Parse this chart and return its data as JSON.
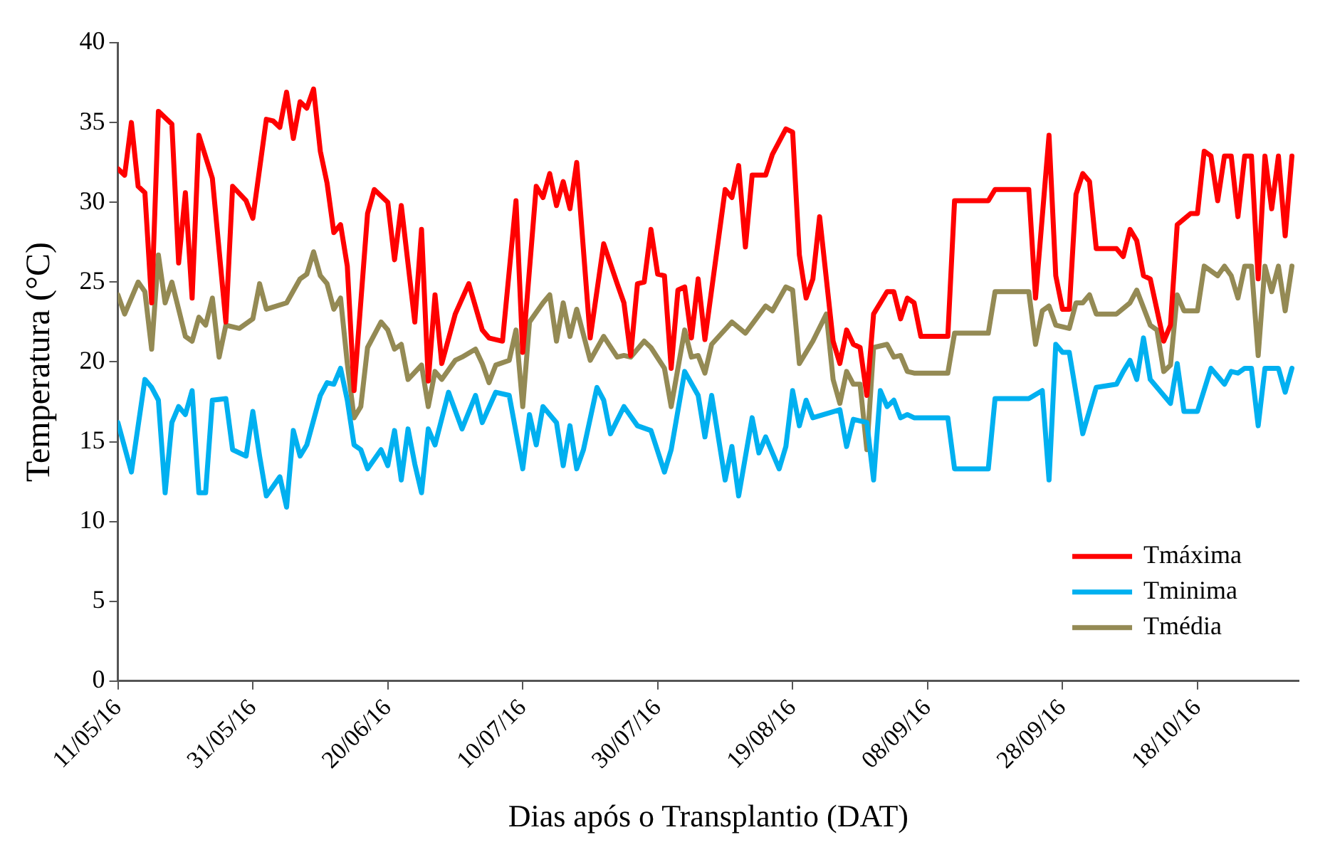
{
  "chart_data": {
    "type": "line",
    "xlabel": "Dias após o Transplantio (DAT)",
    "ylabel": "Temperatura (°C)",
    "xlim": [
      "2016-05-11",
      "2016-11-02"
    ],
    "xticks": [
      {
        "value": "2016-05-11",
        "label": "11/05/16"
      },
      {
        "value": "2016-05-31",
        "label": "31/05/16"
      },
      {
        "value": "2016-06-20",
        "label": "20/06/16"
      },
      {
        "value": "2016-07-10",
        "label": "10/07/16"
      },
      {
        "value": "2016-07-30",
        "label": "30/07/16"
      },
      {
        "value": "2016-08-19",
        "label": "19/08/16"
      },
      {
        "value": "2016-09-08",
        "label": "08/09/16"
      },
      {
        "value": "2016-09-28",
        "label": "28/09/16"
      },
      {
        "value": "2016-10-18",
        "label": "18/10/16"
      }
    ],
    "ylim": [
      0,
      40
    ],
    "yticks": [
      0,
      5,
      10,
      15,
      20,
      25,
      30,
      35,
      40
    ],
    "grid": false,
    "legend": "bottom right",
    "marker": "none",
    "line_style": "solid",
    "series": [
      {
        "name": "Tmáxima",
        "color": "#ff0000",
        "x": [
          "2016-05-11",
          "2016-05-12",
          "2016-05-13",
          "2016-05-14",
          "2016-05-15",
          "2016-05-16",
          "2016-05-17",
          "2016-05-19",
          "2016-05-20",
          "2016-05-21",
          "2016-05-22",
          "2016-05-23",
          "2016-05-25",
          "2016-05-27",
          "2016-05-28",
          "2016-05-30",
          "2016-05-31",
          "2016-06-02",
          "2016-06-03",
          "2016-06-04",
          "2016-06-05",
          "2016-06-06",
          "2016-06-07",
          "2016-06-08",
          "2016-06-09",
          "2016-06-10",
          "2016-06-11",
          "2016-06-12",
          "2016-06-13",
          "2016-06-14",
          "2016-06-15",
          "2016-06-17",
          "2016-06-18",
          "2016-06-20",
          "2016-06-21",
          "2016-06-22",
          "2016-06-24",
          "2016-06-25",
          "2016-06-26",
          "2016-06-27",
          "2016-06-28",
          "2016-06-30",
          "2016-07-02",
          "2016-07-04",
          "2016-07-05",
          "2016-07-07",
          "2016-07-09",
          "2016-07-10",
          "2016-07-12",
          "2016-07-13",
          "2016-07-14",
          "2016-07-15",
          "2016-07-16",
          "2016-07-17",
          "2016-07-18",
          "2016-07-20",
          "2016-07-22",
          "2016-07-24",
          "2016-07-25",
          "2016-07-26",
          "2016-07-27",
          "2016-07-28",
          "2016-07-29",
          "2016-07-30",
          "2016-07-31",
          "2016-08-01",
          "2016-08-02",
          "2016-08-03",
          "2016-08-04",
          "2016-08-05",
          "2016-08-06",
          "2016-08-09",
          "2016-08-10",
          "2016-08-11",
          "2016-08-12",
          "2016-08-13",
          "2016-08-15",
          "2016-08-16",
          "2016-08-18",
          "2016-08-19",
          "2016-08-20",
          "2016-08-21",
          "2016-08-22",
          "2016-08-23",
          "2016-08-25",
          "2016-08-26",
          "2016-08-27",
          "2016-08-28",
          "2016-08-29",
          "2016-08-30",
          "2016-08-31",
          "2016-09-02",
          "2016-09-03",
          "2016-09-04",
          "2016-09-05",
          "2016-09-06",
          "2016-09-07",
          "2016-09-11",
          "2016-09-12",
          "2016-09-17",
          "2016-09-18",
          "2016-09-23",
          "2016-09-24",
          "2016-09-26",
          "2016-09-27",
          "2016-09-28",
          "2016-09-29",
          "2016-09-30",
          "2016-10-01",
          "2016-10-02",
          "2016-10-03",
          "2016-10-06",
          "2016-10-07",
          "2016-10-08",
          "2016-10-09",
          "2016-10-10",
          "2016-10-11",
          "2016-10-13",
          "2016-10-14",
          "2016-10-15",
          "2016-10-17",
          "2016-10-18",
          "2016-10-19",
          "2016-10-20",
          "2016-10-21",
          "2016-10-22",
          "2016-10-23",
          "2016-10-24",
          "2016-10-25",
          "2016-10-26",
          "2016-10-27",
          "2016-10-28",
          "2016-10-29",
          "2016-10-30",
          "2016-10-31",
          "2016-11-01"
        ],
        "values": [
          32.1,
          31.7,
          35.0,
          31.0,
          30.6,
          23.7,
          35.7,
          34.9,
          26.2,
          30.6,
          24.0,
          34.2,
          31.5,
          22.5,
          31.0,
          30.1,
          29.0,
          35.2,
          35.1,
          34.7,
          36.9,
          34.0,
          36.3,
          35.9,
          37.1,
          33.2,
          31.2,
          28.1,
          28.6,
          26.0,
          18.2,
          29.3,
          30.8,
          30.0,
          26.4,
          29.8,
          22.5,
          28.3,
          18.8,
          24.2,
          19.9,
          23.0,
          24.9,
          22.0,
          21.5,
          21.3,
          30.1,
          20.6,
          31.0,
          30.3,
          31.8,
          29.8,
          31.3,
          29.6,
          32.5,
          21.5,
          27.4,
          24.9,
          23.7,
          20.4,
          24.9,
          25.0,
          28.3,
          25.5,
          25.4,
          19.6,
          24.5,
          24.7,
          21.5,
          25.2,
          21.4,
          30.8,
          30.3,
          32.3,
          27.2,
          31.7,
          31.7,
          33.0,
          34.6,
          34.4,
          26.7,
          24.0,
          25.2,
          29.1,
          21.3,
          19.9,
          22.0,
          21.1,
          20.9,
          17.9,
          23.0,
          24.4,
          24.4,
          22.7,
          24.0,
          23.7,
          21.6,
          21.6,
          30.1,
          30.1,
          30.8,
          30.8,
          24.0,
          34.2,
          25.4,
          23.3,
          23.3,
          30.5,
          31.8,
          31.3,
          27.1,
          27.1,
          26.6,
          28.3,
          27.6,
          25.4,
          25.2,
          21.3,
          22.3,
          28.6,
          29.3,
          29.3,
          33.2,
          32.9,
          30.1,
          32.9,
          32.9,
          29.1,
          32.9,
          32.9,
          25.2,
          32.9,
          29.6,
          32.9,
          27.9,
          32.9
        ]
      },
      {
        "name": "Tminima",
        "color": "#00b0f0",
        "x": [
          "2016-05-11",
          "2016-05-13",
          "2016-05-15",
          "2016-05-16",
          "2016-05-17",
          "2016-05-18",
          "2016-05-19",
          "2016-05-20",
          "2016-05-21",
          "2016-05-22",
          "2016-05-23",
          "2016-05-24",
          "2016-05-25",
          "2016-05-27",
          "2016-05-28",
          "2016-05-30",
          "2016-05-31",
          "2016-06-01",
          "2016-06-02",
          "2016-06-04",
          "2016-06-05",
          "2016-06-06",
          "2016-06-07",
          "2016-06-08",
          "2016-06-10",
          "2016-06-11",
          "2016-06-12",
          "2016-06-13",
          "2016-06-14",
          "2016-06-15",
          "2016-06-16",
          "2016-06-17",
          "2016-06-19",
          "2016-06-20",
          "2016-06-21",
          "2016-06-22",
          "2016-06-23",
          "2016-06-24",
          "2016-06-25",
          "2016-06-26",
          "2016-06-27",
          "2016-06-29",
          "2016-07-01",
          "2016-07-03",
          "2016-07-04",
          "2016-07-06",
          "2016-07-08",
          "2016-07-10",
          "2016-07-11",
          "2016-07-12",
          "2016-07-13",
          "2016-07-15",
          "2016-07-16",
          "2016-07-17",
          "2016-07-18",
          "2016-07-19",
          "2016-07-21",
          "2016-07-22",
          "2016-07-23",
          "2016-07-25",
          "2016-07-27",
          "2016-07-29",
          "2016-07-31",
          "2016-08-01",
          "2016-08-03",
          "2016-08-05",
          "2016-08-06",
          "2016-08-07",
          "2016-08-09",
          "2016-08-10",
          "2016-08-11",
          "2016-08-13",
          "2016-08-14",
          "2016-08-15",
          "2016-08-17",
          "2016-08-18",
          "2016-08-19",
          "2016-08-20",
          "2016-08-21",
          "2016-08-22",
          "2016-08-26",
          "2016-08-27",
          "2016-08-28",
          "2016-08-30",
          "2016-08-31",
          "2016-09-01",
          "2016-09-02",
          "2016-09-03",
          "2016-09-04",
          "2016-09-05",
          "2016-09-06",
          "2016-09-11",
          "2016-09-12",
          "2016-09-17",
          "2016-09-18",
          "2016-09-23",
          "2016-09-25",
          "2016-09-26",
          "2016-09-27",
          "2016-09-28",
          "2016-09-29",
          "2016-10-01",
          "2016-10-03",
          "2016-10-06",
          "2016-10-07",
          "2016-10-08",
          "2016-10-09",
          "2016-10-10",
          "2016-10-11",
          "2016-10-14",
          "2016-10-15",
          "2016-10-16",
          "2016-10-18",
          "2016-10-20",
          "2016-10-22",
          "2016-10-23",
          "2016-10-24",
          "2016-10-25",
          "2016-10-26",
          "2016-10-27",
          "2016-10-28",
          "2016-10-30",
          "2016-10-31",
          "2016-11-01"
        ],
        "values": [
          16.2,
          13.1,
          18.9,
          18.4,
          17.6,
          11.8,
          16.2,
          17.2,
          16.7,
          18.2,
          11.8,
          11.8,
          17.6,
          17.7,
          14.5,
          14.1,
          16.9,
          14.1,
          11.6,
          12.8,
          10.9,
          15.7,
          14.1,
          14.8,
          17.9,
          18.7,
          18.6,
          19.6,
          17.6,
          14.8,
          14.5,
          13.3,
          14.5,
          13.5,
          15.7,
          12.6,
          15.8,
          13.6,
          11.8,
          15.8,
          14.8,
          18.1,
          15.8,
          17.9,
          16.2,
          18.1,
          17.9,
          13.3,
          16.7,
          14.8,
          17.2,
          16.2,
          13.5,
          16.0,
          13.3,
          14.5,
          18.4,
          17.6,
          15.5,
          17.2,
          16.0,
          15.7,
          13.1,
          14.5,
          19.4,
          17.9,
          15.3,
          17.9,
          12.6,
          14.7,
          11.6,
          16.5,
          14.3,
          15.3,
          13.3,
          14.7,
          18.2,
          16.0,
          17.6,
          16.5,
          17.0,
          14.7,
          16.4,
          16.2,
          12.6,
          18.2,
          17.2,
          17.6,
          16.5,
          16.7,
          16.5,
          16.5,
          13.3,
          13.3,
          17.7,
          17.7,
          18.2,
          12.6,
          21.1,
          20.6,
          20.6,
          15.5,
          18.4,
          18.6,
          19.4,
          20.1,
          18.9,
          21.5,
          18.9,
          17.4,
          19.9,
          16.9,
          16.9,
          19.6,
          18.6,
          19.4,
          19.3,
          19.6,
          19.6,
          16.0,
          19.6,
          19.6,
          18.1,
          19.6
        ]
      },
      {
        "name": "Tmédia",
        "color": "#948a54",
        "x": [
          "2016-05-11",
          "2016-05-12",
          "2016-05-14",
          "2016-05-15",
          "2016-05-16",
          "2016-05-17",
          "2016-05-18",
          "2016-05-19",
          "2016-05-20",
          "2016-05-21",
          "2016-05-22",
          "2016-05-23",
          "2016-05-24",
          "2016-05-25",
          "2016-05-26",
          "2016-05-27",
          "2016-05-29",
          "2016-05-31",
          "2016-06-01",
          "2016-06-02",
          "2016-06-05",
          "2016-06-07",
          "2016-06-08",
          "2016-06-09",
          "2016-06-10",
          "2016-06-11",
          "2016-06-12",
          "2016-06-13",
          "2016-06-14",
          "2016-06-15",
          "2016-06-16",
          "2016-06-17",
          "2016-06-19",
          "2016-06-20",
          "2016-06-21",
          "2016-06-22",
          "2016-06-23",
          "2016-06-25",
          "2016-06-26",
          "2016-06-27",
          "2016-06-28",
          "2016-06-30",
          "2016-07-01",
          "2016-07-03",
          "2016-07-04",
          "2016-07-05",
          "2016-07-06",
          "2016-07-08",
          "2016-07-09",
          "2016-07-10",
          "2016-07-11",
          "2016-07-13",
          "2016-07-14",
          "2016-07-15",
          "2016-07-16",
          "2016-07-17",
          "2016-07-18",
          "2016-07-20",
          "2016-07-22",
          "2016-07-24",
          "2016-07-25",
          "2016-07-26",
          "2016-07-28",
          "2016-07-29",
          "2016-07-31",
          "2016-08-01",
          "2016-08-02",
          "2016-08-03",
          "2016-08-04",
          "2016-08-05",
          "2016-08-06",
          "2016-08-07",
          "2016-08-10",
          "2016-08-12",
          "2016-08-15",
          "2016-08-16",
          "2016-08-18",
          "2016-08-19",
          "2016-08-20",
          "2016-08-22",
          "2016-08-24",
          "2016-08-25",
          "2016-08-26",
          "2016-08-27",
          "2016-08-28",
          "2016-08-29",
          "2016-08-30",
          "2016-08-31",
          "2016-09-02",
          "2016-09-03",
          "2016-09-04",
          "2016-09-05",
          "2016-09-06",
          "2016-09-11",
          "2016-09-12",
          "2016-09-17",
          "2016-09-18",
          "2016-09-23",
          "2016-09-24",
          "2016-09-25",
          "2016-09-26",
          "2016-09-27",
          "2016-09-29",
          "2016-09-30",
          "2016-10-01",
          "2016-10-02",
          "2016-10-03",
          "2016-10-06",
          "2016-10-08",
          "2016-10-09",
          "2016-10-11",
          "2016-10-12",
          "2016-10-13",
          "2016-10-14",
          "2016-10-15",
          "2016-10-16",
          "2016-10-18",
          "2016-10-19",
          "2016-10-21",
          "2016-10-22",
          "2016-10-23",
          "2016-10-24",
          "2016-10-25",
          "2016-10-26",
          "2016-10-27",
          "2016-10-28",
          "2016-10-29",
          "2016-10-30",
          "2016-10-31",
          "2016-11-01"
        ],
        "values": [
          24.2,
          23.0,
          25.0,
          24.4,
          20.8,
          26.7,
          23.7,
          25.0,
          23.3,
          21.6,
          21.3,
          22.8,
          22.3,
          24.0,
          20.3,
          22.3,
          22.1,
          22.7,
          24.9,
          23.3,
          23.7,
          25.2,
          25.5,
          26.9,
          25.4,
          24.9,
          23.3,
          24.0,
          19.9,
          16.5,
          17.2,
          20.9,
          22.5,
          22.0,
          20.8,
          21.1,
          18.9,
          19.8,
          17.2,
          19.4,
          18.9,
          20.1,
          20.3,
          20.8,
          19.9,
          18.7,
          19.8,
          20.1,
          22.0,
          17.2,
          22.5,
          23.7,
          24.2,
          21.3,
          23.7,
          21.6,
          23.3,
          20.1,
          21.6,
          20.3,
          20.4,
          20.3,
          21.3,
          20.9,
          19.6,
          17.2,
          19.6,
          22.0,
          20.3,
          20.4,
          19.3,
          21.1,
          22.5,
          21.8,
          23.5,
          23.2,
          24.7,
          24.5,
          19.9,
          21.3,
          23.0,
          18.9,
          17.4,
          19.4,
          18.6,
          18.6,
          14.5,
          20.9,
          21.1,
          20.3,
          20.4,
          19.4,
          19.3,
          19.3,
          21.8,
          21.8,
          24.4,
          24.4,
          21.1,
          23.2,
          23.5,
          22.3,
          22.1,
          23.7,
          23.7,
          24.2,
          23.0,
          23.0,
          23.7,
          24.5,
          22.3,
          22.0,
          19.4,
          19.8,
          24.2,
          23.2,
          23.2,
          26.0,
          25.4,
          26.0,
          25.4,
          24.0,
          26.0,
          26.0,
          20.4,
          26.0,
          24.4,
          26.0,
          23.2,
          26.0
        ]
      }
    ]
  }
}
